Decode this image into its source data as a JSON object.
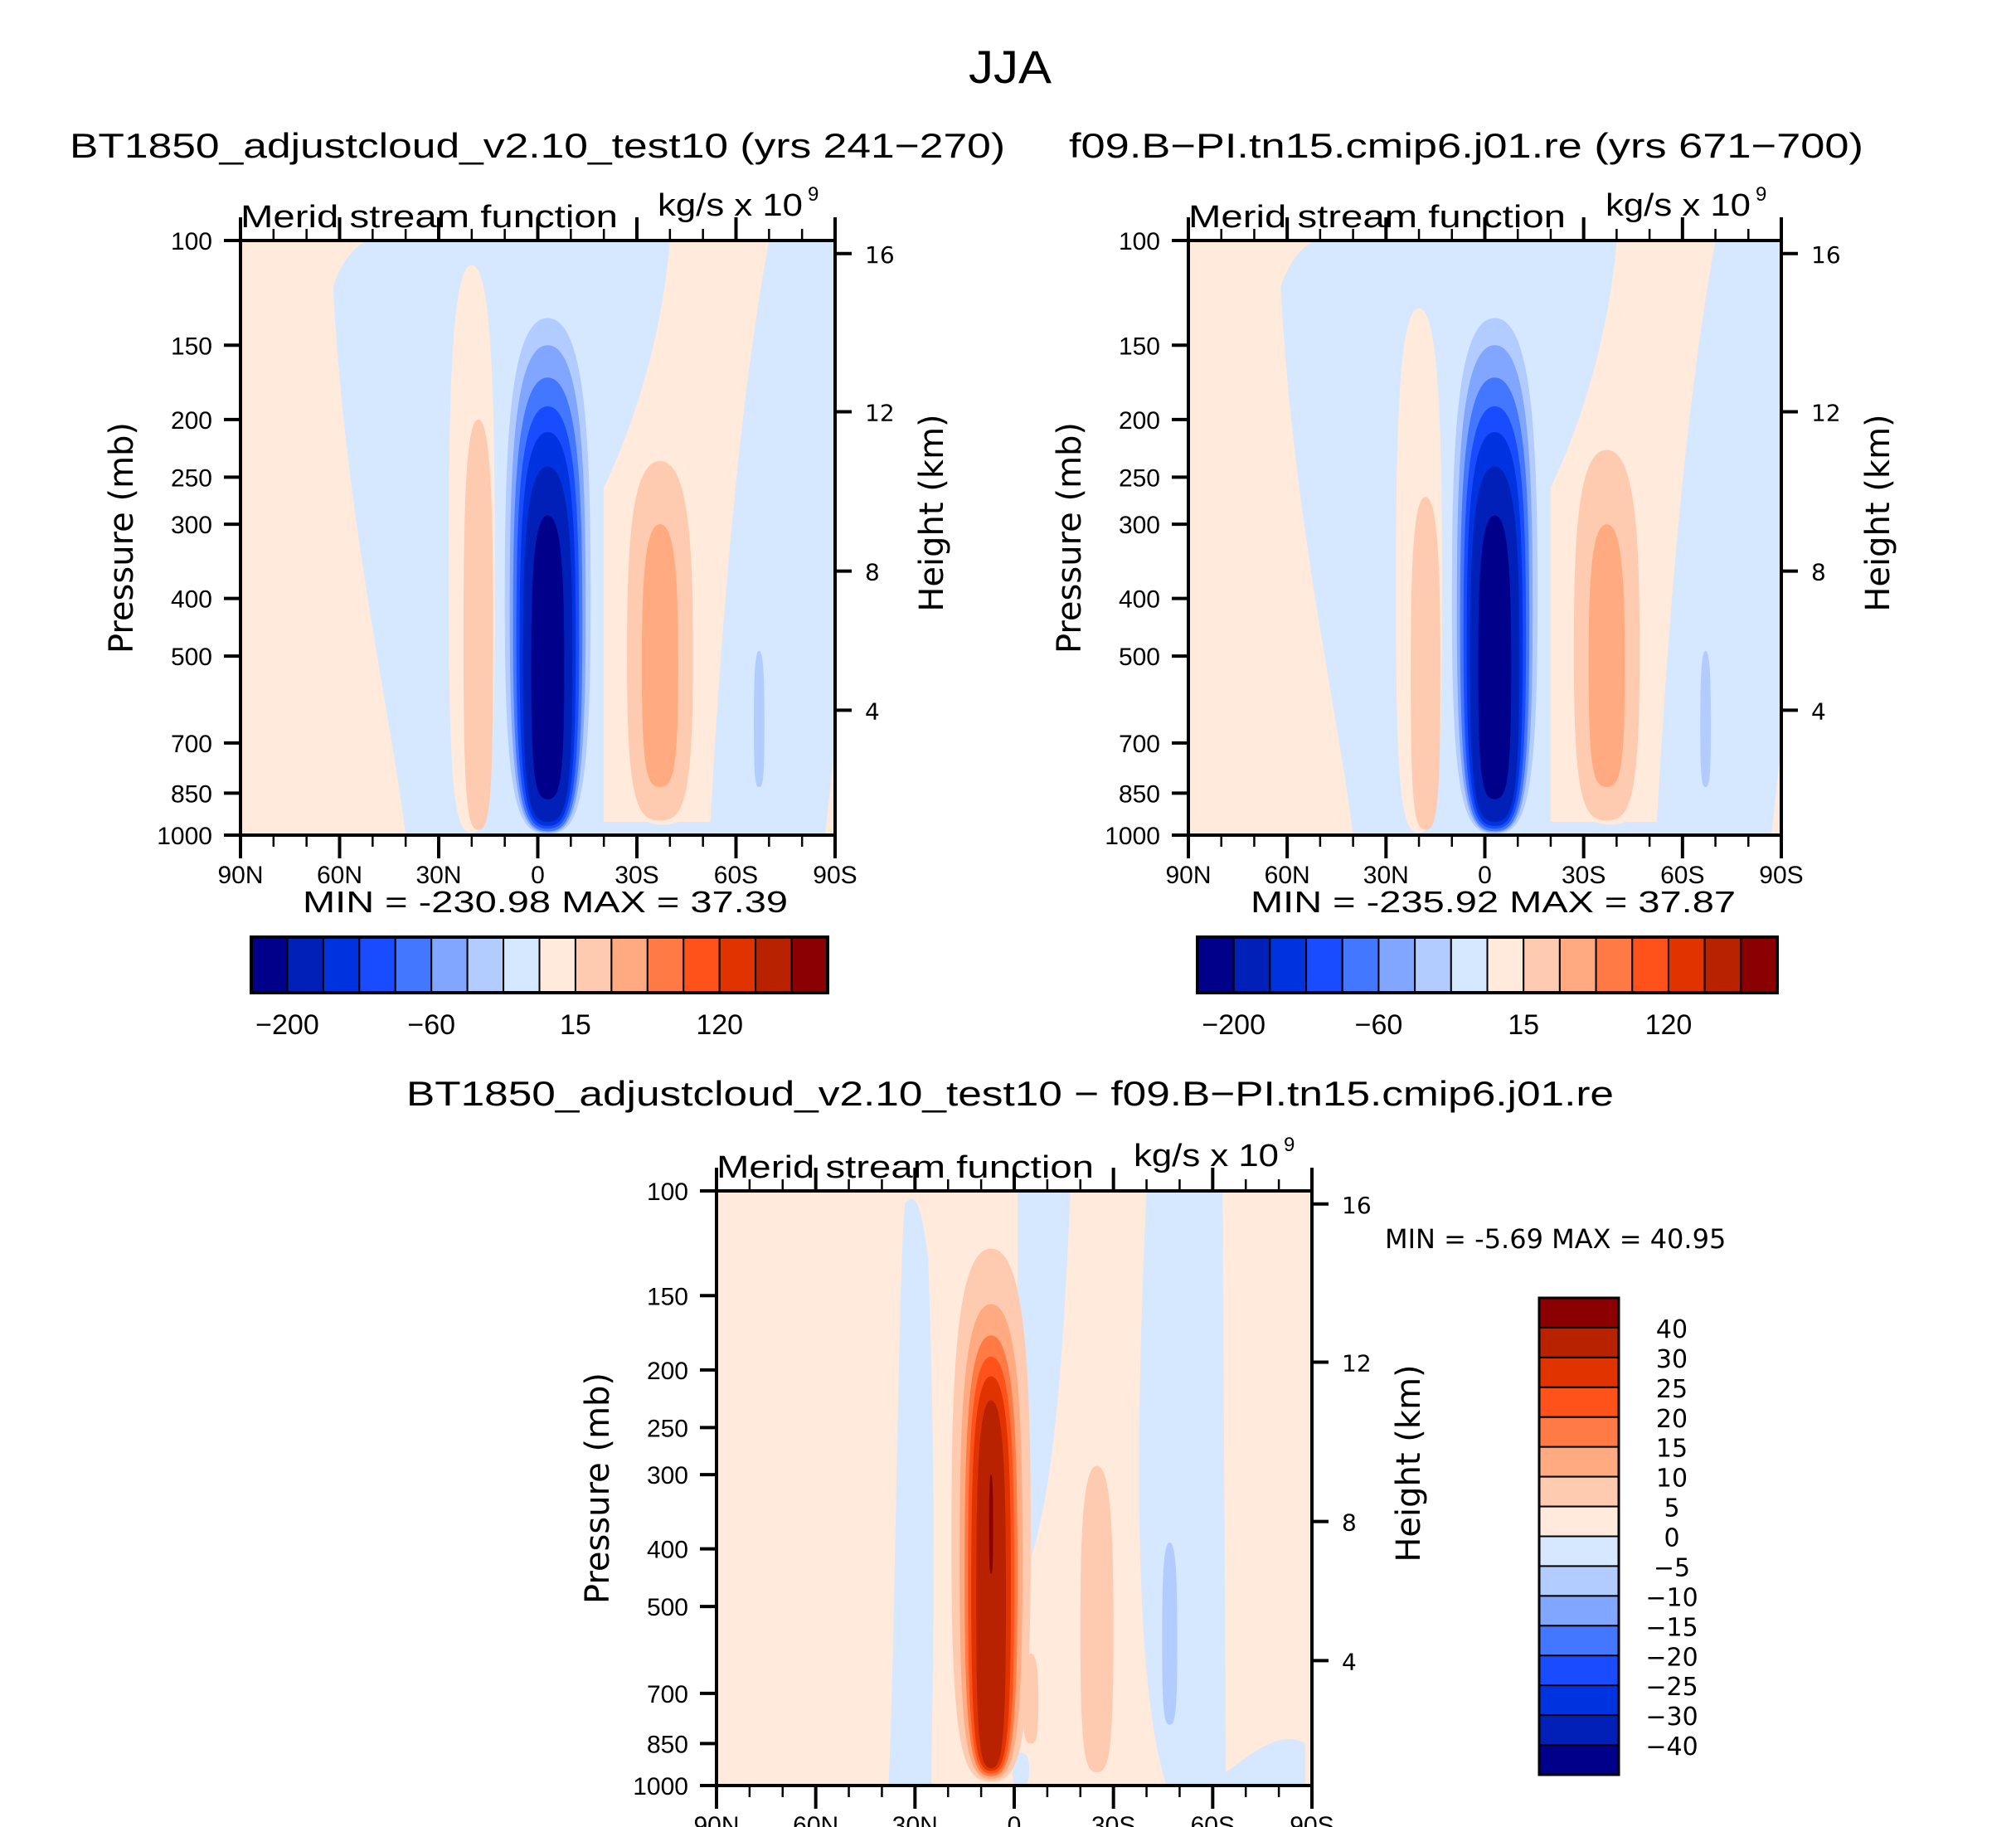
{
  "figure": {
    "title": "JJA",
    "diff_title": "BT1850_adjustcloud_v2.10_test10 - f09.B-PI.tn15.cmip6.j01.re"
  },
  "chart_data": [
    {
      "type": "heatmap",
      "panel": "top-left",
      "title": "BT1850_adjustcloud_v2.10_test10 (yrs 241-270)",
      "subtitle_left": "Merid stream function",
      "subtitle_right": "kg/s x 10",
      "subtitle_right_exp": "9",
      "xlabel": "",
      "ylabel": "Pressure (mb)",
      "ylabel_right": "Height (km)",
      "x_ticks": [
        "90N",
        "60N",
        "30N",
        "0",
        "30S",
        "60S",
        "90S"
      ],
      "x_range": [
        90,
        -90
      ],
      "y_ticks": [
        "100",
        "150",
        "200",
        "250",
        "300",
        "400",
        "500",
        "700",
        "850",
        "1000"
      ],
      "y_range": [
        100,
        1000
      ],
      "y_scale": "log",
      "y_right_ticks": [
        "16",
        "12",
        "8",
        "4"
      ],
      "stats": {
        "min_label": "MIN =",
        "min": "-230.98",
        "max_label": "MAX =",
        "max": "37.39"
      },
      "colorbar": {
        "orientation": "horizontal",
        "labels": [
          "-200",
          "-60",
          "15",
          "120"
        ],
        "colors": [
          "#00008b",
          "#0020b8",
          "#0033e0",
          "#1a4cff",
          "#4477ff",
          "#80a6ff",
          "#b3ccff",
          "#d6e8ff",
          "#ffeadb",
          "#ffcbb0",
          "#ffaa80",
          "#ff7a45",
          "#ff521a",
          "#e03300",
          "#b82200",
          "#8b0000"
        ]
      },
      "features": [
        {
          "desc": "strong negative cell",
          "lat_center": -3,
          "p_top": 135,
          "p_bottom": 990,
          "peak": -230.98
        },
        {
          "desc": "positive cell SH",
          "lat_center": -38,
          "p_top": 230,
          "p_bottom": 950,
          "peak": 37.39
        },
        {
          "desc": "weak positive NH",
          "lat_center": 20,
          "p_top": 110,
          "p_bottom": 990
        }
      ]
    },
    {
      "type": "heatmap",
      "panel": "top-right",
      "title": "f09.B-PI.tn15.cmip6.j01.re (yrs 671-700)",
      "subtitle_left": "Merid stream function",
      "subtitle_right": "kg/s x 10",
      "subtitle_right_exp": "9",
      "ylabel": "Pressure (mb)",
      "ylabel_right": "Height (km)",
      "x_ticks": [
        "90N",
        "60N",
        "30N",
        "0",
        "30S",
        "60S",
        "90S"
      ],
      "x_range": [
        90,
        -90
      ],
      "y_ticks": [
        "100",
        "150",
        "200",
        "250",
        "300",
        "400",
        "500",
        "700",
        "850",
        "1000"
      ],
      "y_range": [
        100,
        1000
      ],
      "y_scale": "log",
      "y_right_ticks": [
        "16",
        "12",
        "8",
        "4"
      ],
      "stats": {
        "min_label": "MIN =",
        "min": "-235.92",
        "max_label": "MAX =",
        "max": "37.87"
      },
      "colorbar": {
        "orientation": "horizontal",
        "labels": [
          "-200",
          "-60",
          "15",
          "120"
        ],
        "colors": [
          "#00008b",
          "#0020b8",
          "#0033e0",
          "#1a4cff",
          "#4477ff",
          "#80a6ff",
          "#b3ccff",
          "#d6e8ff",
          "#ffeadb",
          "#ffcbb0",
          "#ffaa80",
          "#ff7a45",
          "#ff521a",
          "#e03300",
          "#b82200",
          "#8b0000"
        ]
      },
      "features": [
        {
          "desc": "strong negative cell",
          "lat_center": -3,
          "p_top": 130,
          "p_bottom": 990,
          "peak": -235.92
        },
        {
          "desc": "positive cell SH",
          "lat_center": -38,
          "p_top": 220,
          "p_bottom": 950,
          "peak": 37.87
        },
        {
          "desc": "weak positive NH",
          "lat_center": 20,
          "p_top": 130,
          "p_bottom": 990
        }
      ]
    },
    {
      "type": "heatmap",
      "panel": "bottom-difference",
      "title": "BT1850_adjustcloud_v2.10_test10 - f09.B-PI.tn15.cmip6.j01.re",
      "subtitle_left": "Merid stream function",
      "subtitle_right": "kg/s x 10",
      "subtitle_right_exp": "9",
      "ylabel": "Pressure (mb)",
      "ylabel_right": "Height (km)",
      "x_ticks": [
        "90N",
        "60N",
        "30N",
        "0",
        "30S",
        "60S",
        "90S"
      ],
      "x_range": [
        90,
        -90
      ],
      "y_ticks": [
        "100",
        "150",
        "200",
        "250",
        "300",
        "400",
        "500",
        "700",
        "850",
        "1000"
      ],
      "y_range": [
        100,
        1000
      ],
      "y_scale": "log",
      "y_right_ticks": [
        "16",
        "12",
        "8",
        "4"
      ],
      "stats": {
        "min_label": "MIN =",
        "min": "-5.69",
        "max_label": "MAX =",
        "max": "40.95"
      },
      "colorbar": {
        "orientation": "vertical",
        "labels": [
          "40",
          "30",
          "25",
          "20",
          "15",
          "10",
          "5",
          "0",
          "-5",
          "-10",
          "-15",
          "-20",
          "-25",
          "-30",
          "-40"
        ],
        "colors": [
          "#8b0000",
          "#b82200",
          "#e03300",
          "#ff521a",
          "#ff7a45",
          "#ffaa80",
          "#ffcbb0",
          "#ffeadb",
          "#d6e8ff",
          "#b3ccff",
          "#80a6ff",
          "#4477ff",
          "#1a4cff",
          "#0033e0",
          "#0020b8",
          "#00008b"
        ]
      },
      "features": [
        {
          "desc": "strong positive difference cell",
          "lat_center": 7,
          "p_top": 125,
          "p_bottom": 980,
          "peak": 40.95
        },
        {
          "desc": "weak positive SH",
          "lat_center": -25,
          "p_top": 290,
          "p_bottom": 950
        },
        {
          "desc": "weak negative SH",
          "lat_center": -47,
          "p_top": 390,
          "p_bottom": 780,
          "peak": -5.69
        }
      ]
    }
  ]
}
